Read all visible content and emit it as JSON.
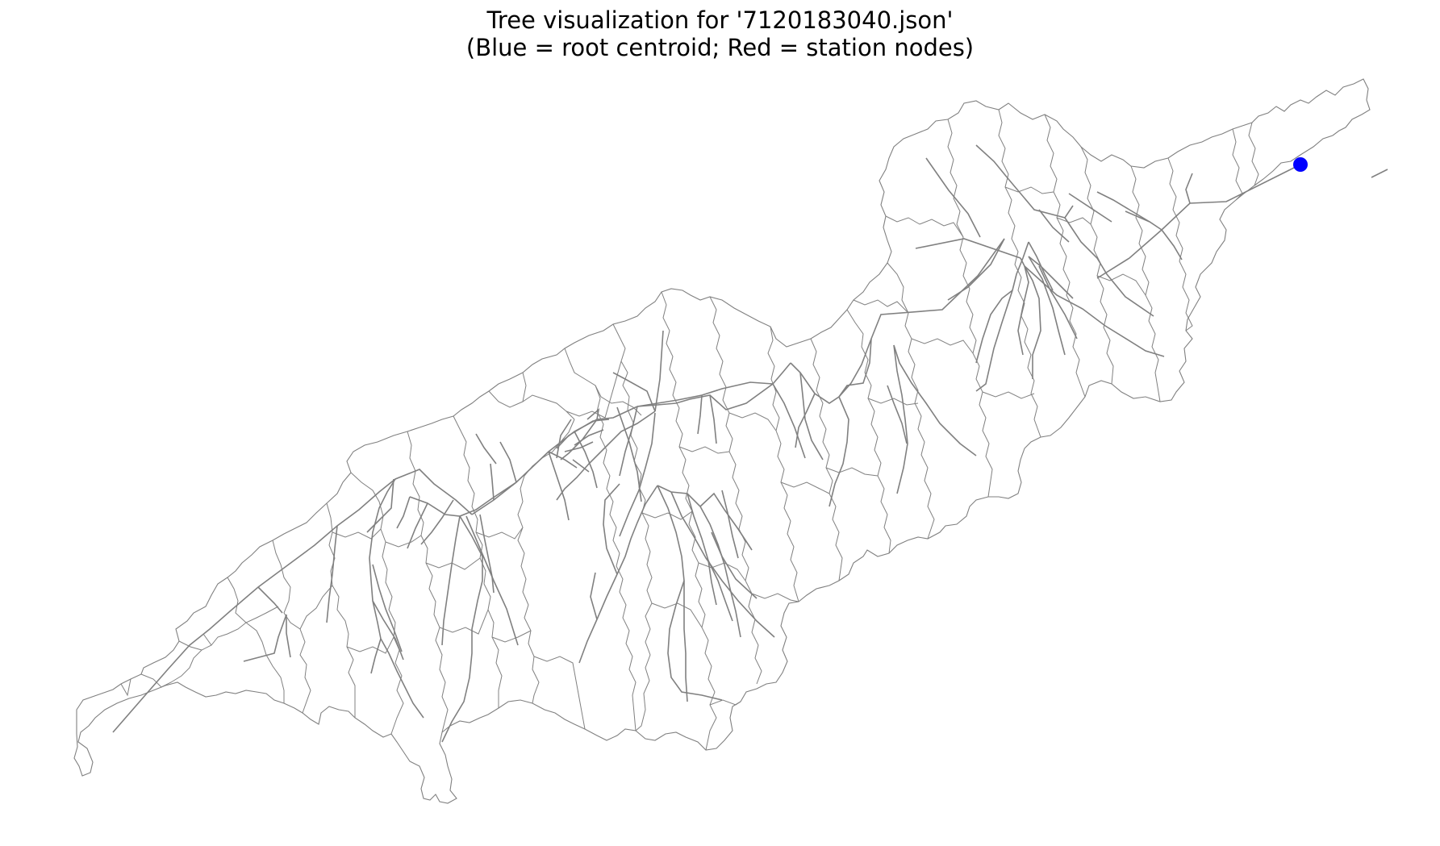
{
  "figure": {
    "title_line1": "Tree visualization for '7120183040.json'",
    "title_line2": "(Blue = root centroid; Red = station nodes)"
  },
  "map": {
    "basin_outline_color": "#808080",
    "tree_edge_color": "#808080",
    "root_color": "#0000ff",
    "station_color": "#ff0000",
    "station_nodes_visible": 0,
    "root_marker": "root-centroid"
  }
}
